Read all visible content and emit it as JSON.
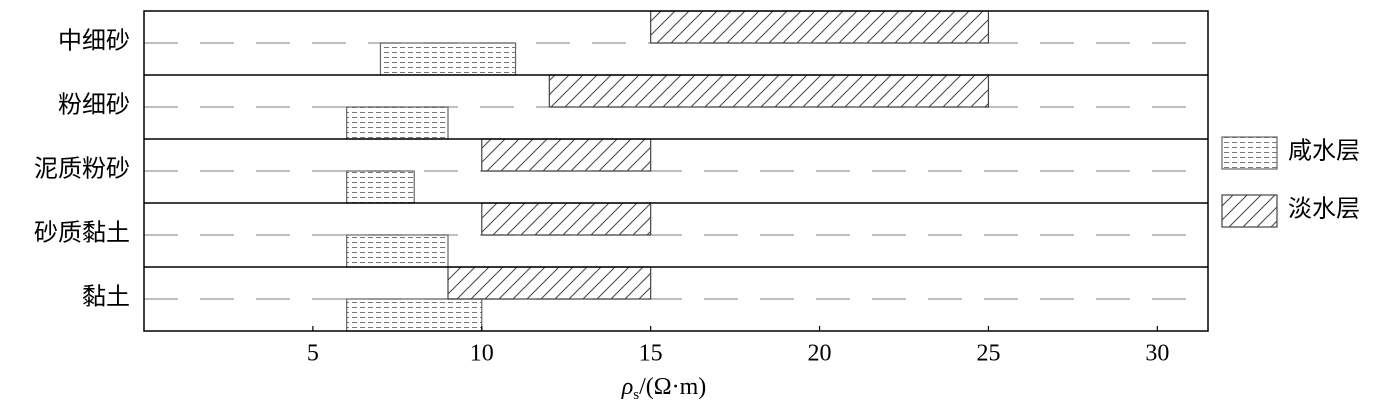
{
  "chart_data": {
    "type": "floating-bar",
    "categories": [
      "中细砂",
      "粉细砂",
      "泥质粉砂",
      "砂质黏土",
      "黏土"
    ],
    "series": [
      {
        "name": "咸水层",
        "color": "#666666",
        "hatch": "horizontal-dashed",
        "values": [
          [
            7,
            11
          ],
          [
            6,
            9
          ],
          [
            6,
            8
          ],
          [
            6,
            9
          ],
          [
            6,
            10
          ]
        ]
      },
      {
        "name": "淡水层",
        "color": "#444444",
        "hatch": "diagonal",
        "values": [
          [
            15,
            25
          ],
          [
            12,
            25
          ],
          [
            10,
            15
          ],
          [
            10,
            15
          ],
          [
            9,
            15
          ]
        ]
      }
    ],
    "xlabel": {
      "symbol": "ρ",
      "subscript": "s",
      "unit": "/(Ω·m)"
    },
    "xlim": [
      0,
      31.5
    ],
    "xticks": [
      5,
      10,
      15,
      20,
      25,
      30
    ],
    "legend": "right"
  }
}
